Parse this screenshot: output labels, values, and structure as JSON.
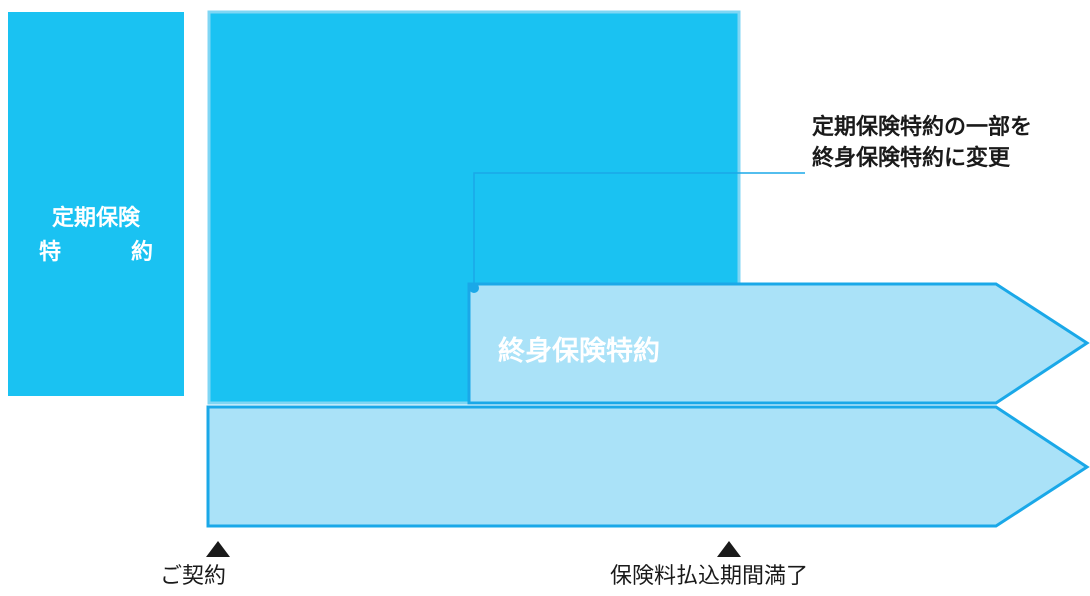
{
  "legend": {
    "line1": "定期保険",
    "line2_left": "特",
    "line2_right": "約"
  },
  "annotation": {
    "line1": "定期保険特約の一部を",
    "line2": "終身保険特約に変更"
  },
  "blocks": {
    "whole_life_rider_label": "終身保険特約"
  },
  "milestones": {
    "start_label": "ご契約",
    "premium_end_label": "保険料払込期間満了"
  },
  "colors": {
    "term_rider": "#1ac2f2",
    "light_fill": "#aae2f8",
    "border": "#1aa8e8",
    "marker": "#1a1a1a"
  }
}
